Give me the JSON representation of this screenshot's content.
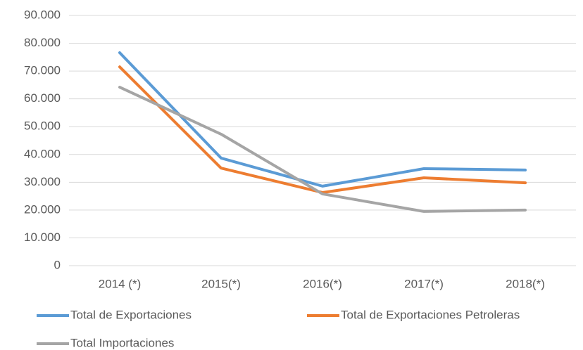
{
  "chart_data": {
    "type": "line",
    "categories": [
      "2014 (*)",
      "2015(*)",
      "2016(*)",
      "2017(*)",
      "2018(*)"
    ],
    "series": [
      {
        "name": "Total de Exportaciones",
        "color": "#5b9bd5",
        "values": [
          76600,
          38700,
          28600,
          34900,
          34400
        ]
      },
      {
        "name": "Total de Exportaciones Petroleras",
        "color": "#ed7d31",
        "values": [
          71500,
          35100,
          26300,
          31600,
          29800
        ]
      },
      {
        "name": "Total Importaciones",
        "color": "#a5a5a5",
        "values": [
          64200,
          47300,
          25800,
          19500,
          20000
        ]
      }
    ],
    "ylim": [
      0,
      90000
    ],
    "yticks": [
      0,
      {
        "value": 10000,
        "label": "10.000"
      },
      {
        "value": 20000,
        "label": "20.000"
      },
      {
        "value": 30000,
        "label": "30.000"
      },
      {
        "value": 40000,
        "label": "40.000"
      },
      {
        "value": 50000,
        "label": "50.000"
      },
      {
        "value": 60000,
        "label": "60.000"
      },
      {
        "value": 70000,
        "label": "70.000"
      },
      {
        "value": 80000,
        "label": "80.000"
      },
      {
        "value": 90000,
        "label": "90.000"
      }
    ],
    "grid": true,
    "legend": "bottom"
  }
}
